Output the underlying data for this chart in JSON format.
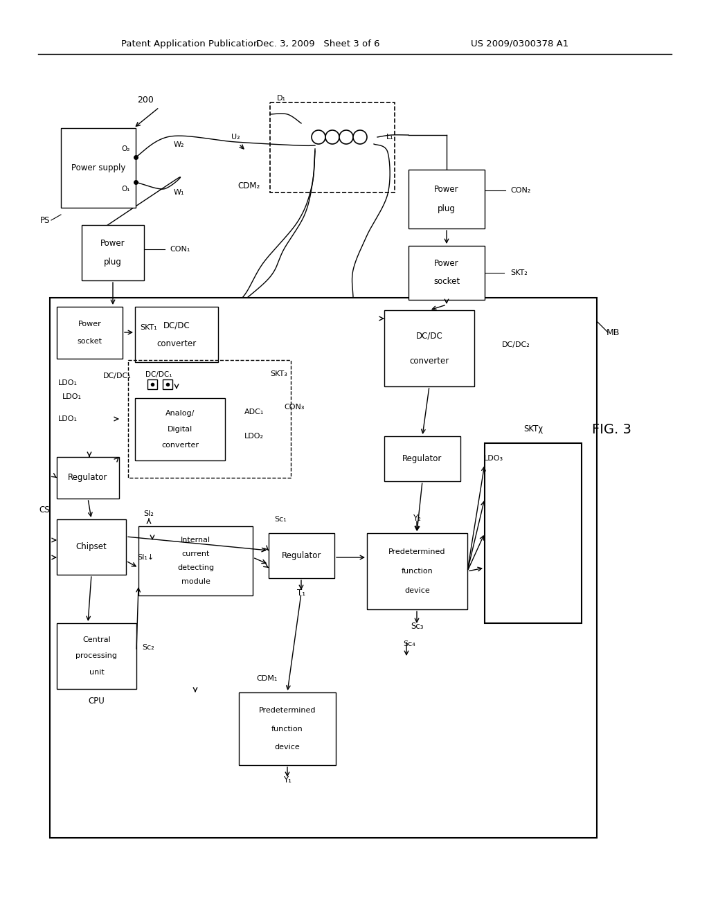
{
  "title_left": "Patent Application Publication",
  "title_mid": "Dec. 3, 2009   Sheet 3 of 6",
  "title_right": "US 2009/0300378 A1",
  "fig_label": "FIG. 3",
  "background": "#ffffff",
  "lc": "#000000"
}
